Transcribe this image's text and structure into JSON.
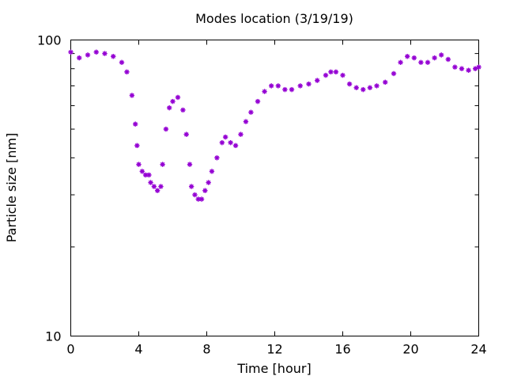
{
  "chart_data": {
    "type": "scatter",
    "title": "Modes location (3/19/19)",
    "xlabel": "Time [hour]",
    "ylabel": "Particle size [nm]",
    "xlim": [
      0,
      24
    ],
    "ylim": [
      10,
      100
    ],
    "yscale": "log",
    "x_ticks": [
      0,
      4,
      8,
      12,
      16,
      20,
      24
    ],
    "x_tick_labels": [
      "0",
      "4",
      "8",
      "12",
      "16",
      "20",
      "24"
    ],
    "y_ticks": [
      10,
      100
    ],
    "y_tick_labels": [
      "10",
      "100"
    ],
    "grid": false,
    "marker_color": "#9400d3",
    "series": [
      {
        "x": [
          0,
          0.5,
          1,
          1.5,
          2,
          2.5,
          3,
          3.3,
          3.6,
          3.8,
          3.9,
          4.0,
          4.2,
          4.4,
          4.6,
          4.7,
          4.9,
          5.1,
          5.3,
          5.4,
          5.6,
          5.8,
          6.0,
          6.3,
          6.6,
          6.8,
          7.0,
          7.1,
          7.3,
          7.5,
          7.7,
          7.9,
          8.1,
          8.3,
          8.6,
          8.9,
          9.1,
          9.4,
          9.7,
          10.0,
          10.3,
          10.6,
          11.0,
          11.4,
          11.8,
          12.2,
          12.6,
          13.0,
          13.5,
          14.0,
          14.5,
          15.0,
          15.3,
          15.6,
          16.0,
          16.4,
          16.8,
          17.2,
          17.6,
          18.0,
          18.5,
          19.0,
          19.4,
          19.8,
          20.2,
          20.6,
          21.0,
          21.4,
          21.8,
          22.2,
          22.6,
          23.0,
          23.4,
          23.8,
          24.0
        ],
        "y": [
          91,
          87,
          89,
          91,
          90,
          88,
          84,
          78,
          65,
          52,
          44,
          38,
          36,
          35,
          35,
          33,
          32,
          31,
          32,
          38,
          50,
          59,
          62,
          64,
          58,
          48,
          38,
          32,
          30,
          29,
          29,
          31,
          33,
          36,
          40,
          45,
          47,
          45,
          44,
          48,
          53,
          57,
          62,
          67,
          70,
          70,
          68,
          68,
          70,
          71,
          73,
          76,
          78,
          78,
          76,
          71,
          69,
          68,
          69,
          70,
          72,
          77,
          84,
          88,
          87,
          84,
          84,
          87,
          89,
          86,
          81,
          80,
          79,
          80,
          81
        ]
      }
    ]
  }
}
